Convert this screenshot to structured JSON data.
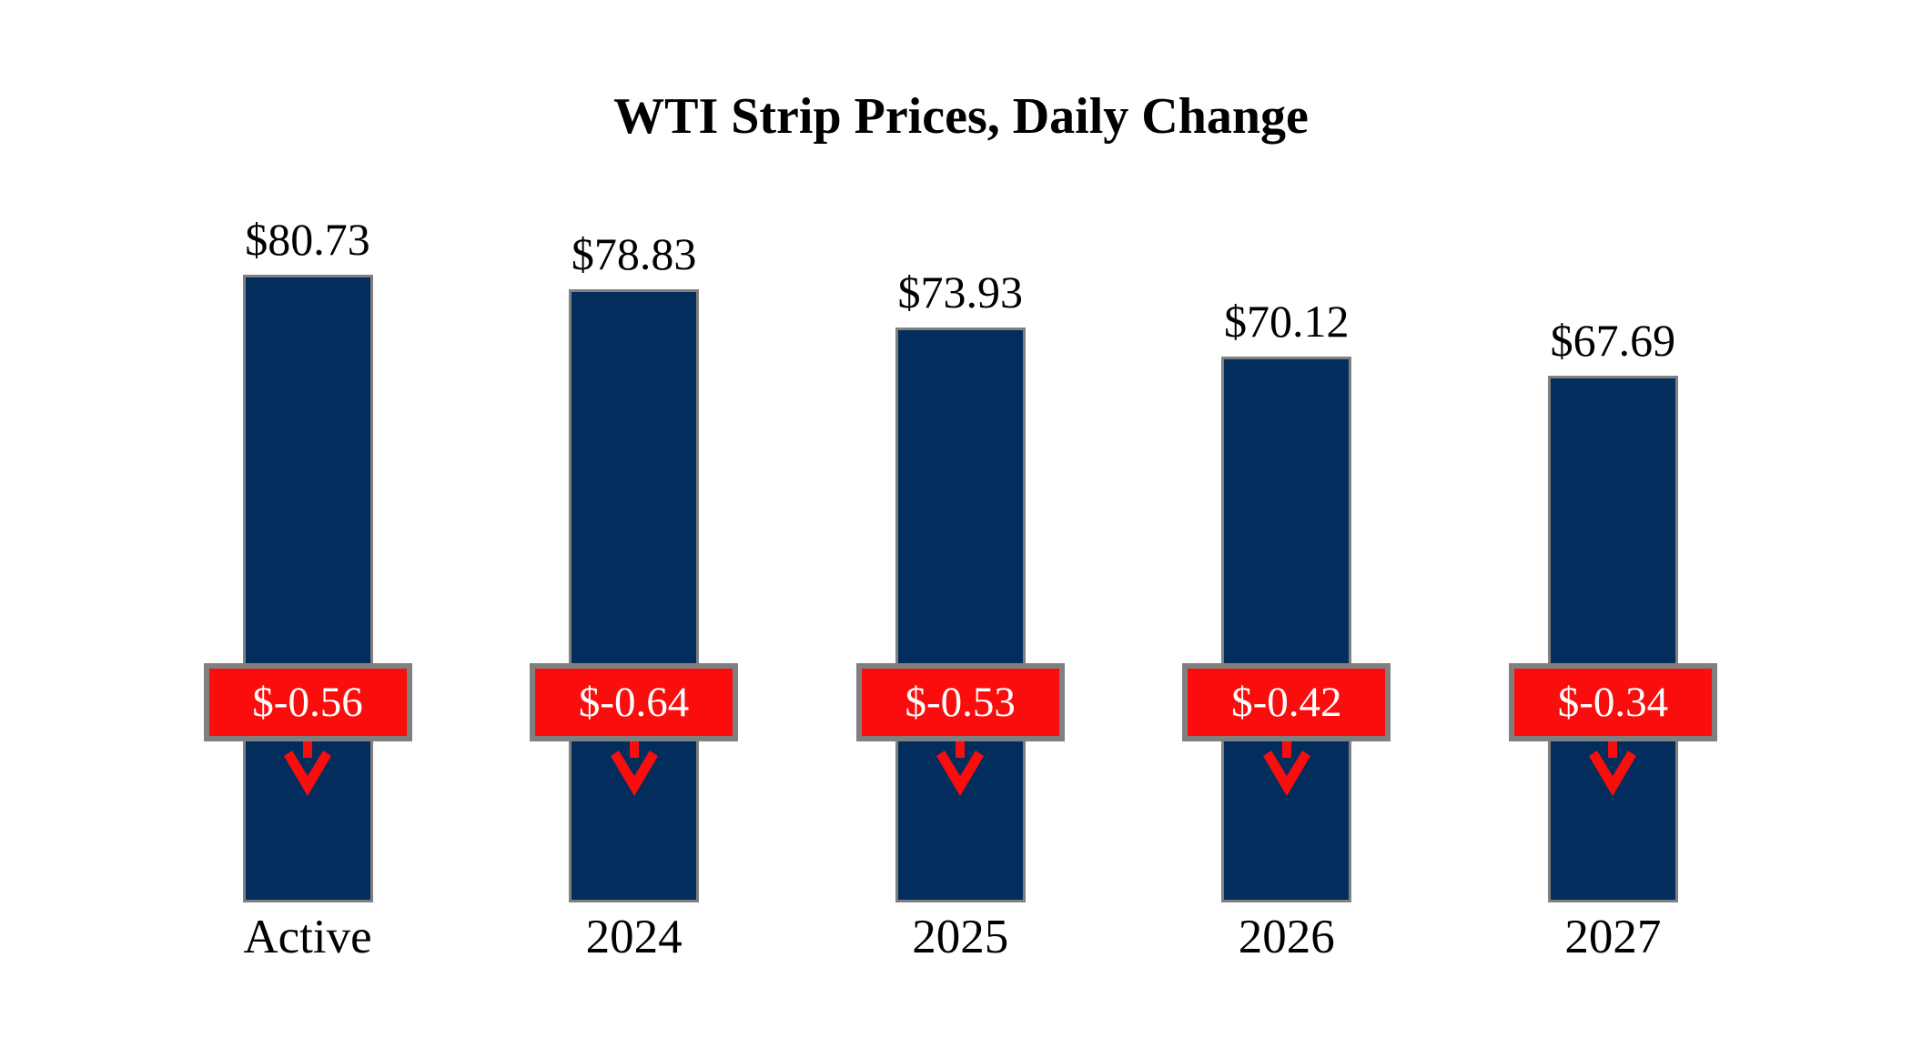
{
  "chart_data": {
    "type": "bar",
    "title": "WTI Strip Prices, Daily Change",
    "categories": [
      "Active",
      "2024",
      "2025",
      "2026",
      "2027"
    ],
    "series": [
      {
        "name": "WTI Strip Price",
        "values": [
          80.73,
          78.83,
          73.93,
          70.12,
          67.69
        ],
        "labels": [
          "$80.73",
          "$78.83",
          "$73.93",
          "$70.12",
          "$67.69"
        ]
      },
      {
        "name": "Daily Change",
        "values": [
          -0.56,
          -0.64,
          -0.53,
          -0.42,
          -0.34
        ],
        "labels": [
          "$-0.56",
          "$-0.64",
          "$-0.53",
          "$-0.42",
          "$-0.34"
        ]
      }
    ],
    "ylim": [
      0,
      85
    ],
    "grid": false,
    "legend": "none",
    "colors": {
      "bar_fill": "#032D5C",
      "bar_border": "#808080",
      "change_box_fill": "#FB0D0D",
      "change_box_border": "#808080",
      "change_text": "#FFFFFF",
      "value_text": "#000000",
      "category_text": "#000000",
      "arrow": "#FB0D0D",
      "background": "#FFFFFF"
    }
  }
}
